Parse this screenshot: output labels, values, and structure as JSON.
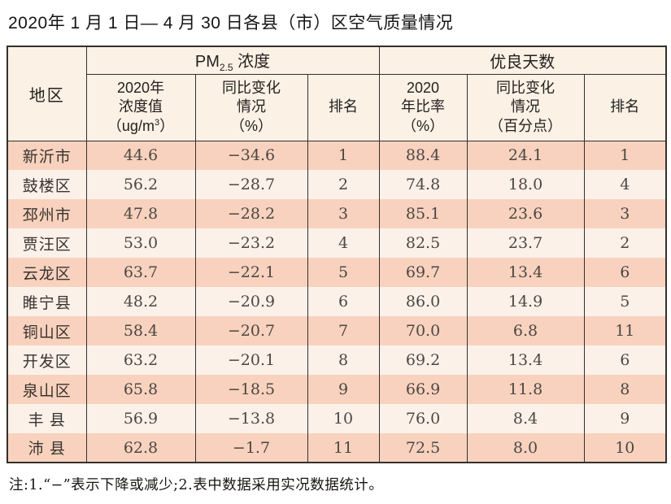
{
  "title": "2020年 1 月 1 日— 4 月 30 日各县（市）区空气质量情况",
  "table": {
    "region_header": "地区",
    "group_pm": {
      "prefix": "PM",
      "sub": "2.5",
      "suffix": " 浓度"
    },
    "group_good": "优良天数",
    "sub_headers": {
      "pm_value": {
        "line1": "2020年",
        "line2": "浓度值",
        "line3_pre": "（ug/m",
        "line3_sup": "3",
        "line3_post": "）"
      },
      "pm_change": {
        "line1": "同比变化",
        "line2": "情况",
        "line3": "（%）"
      },
      "pm_rank": "排名",
      "good_ratio": {
        "line1": "2020",
        "line2": "年比率",
        "line3": "（%）"
      },
      "good_change": {
        "line1": "同比变化",
        "line2": "情况",
        "line3": "（百分点）"
      },
      "good_rank": "排名"
    },
    "columns": [
      "region",
      "pm_value",
      "pm_change",
      "pm_rank",
      "good_ratio",
      "good_change",
      "good_rank"
    ],
    "rows": [
      {
        "region": "新沂市",
        "pm_value": "44.6",
        "pm_change": "−34.6",
        "pm_rank": "1",
        "good_ratio": "88.4",
        "good_change": "24.1",
        "good_rank": "1"
      },
      {
        "region": "鼓楼区",
        "pm_value": "56.2",
        "pm_change": "−28.7",
        "pm_rank": "2",
        "good_ratio": "74.8",
        "good_change": "18.0",
        "good_rank": "4"
      },
      {
        "region": "邳州市",
        "pm_value": "47.8",
        "pm_change": "−28.2",
        "pm_rank": "3",
        "good_ratio": "85.1",
        "good_change": "23.6",
        "good_rank": "3"
      },
      {
        "region": "贾汪区",
        "pm_value": "53.0",
        "pm_change": "−23.2",
        "pm_rank": "4",
        "good_ratio": "82.5",
        "good_change": "23.7",
        "good_rank": "2"
      },
      {
        "region": "云龙区",
        "pm_value": "63.7",
        "pm_change": "−22.1",
        "pm_rank": "5",
        "good_ratio": "69.7",
        "good_change": "13.4",
        "good_rank": "6"
      },
      {
        "region": "睢宁县",
        "pm_value": "48.2",
        "pm_change": "−20.9",
        "pm_rank": "6",
        "good_ratio": "86.0",
        "good_change": "14.9",
        "good_rank": "5"
      },
      {
        "region": "铜山区",
        "pm_value": "58.4",
        "pm_change": "−20.7",
        "pm_rank": "7",
        "good_ratio": "70.0",
        "good_change": "6.8",
        "good_rank": "11"
      },
      {
        "region": "开发区",
        "pm_value": "63.2",
        "pm_change": "−20.1",
        "pm_rank": "8",
        "good_ratio": "69.2",
        "good_change": "13.4",
        "good_rank": "6"
      },
      {
        "region": "泉山区",
        "pm_value": "65.8",
        "pm_change": "−18.5",
        "pm_rank": "9",
        "good_ratio": "66.9",
        "good_change": "11.8",
        "good_rank": "8"
      },
      {
        "region": "丰 县",
        "pm_value": "56.9",
        "pm_change": "−13.8",
        "pm_rank": "10",
        "good_ratio": "76.0",
        "good_change": "8.4",
        "good_rank": "9"
      },
      {
        "region": "沛 县",
        "pm_value": "62.8",
        "pm_change": "−1.7",
        "pm_rank": "11",
        "good_ratio": "72.5",
        "good_change": "8.0",
        "good_rank": "10"
      }
    ]
  },
  "note": "注:1.“−”表示下降或减少;2.表中数据采用实况数据统计。",
  "colors": {
    "band_dark": "#f8d2be",
    "band_light": "#fcf1e9",
    "header_bg": "#fbf1e5",
    "border": "#33302c"
  }
}
